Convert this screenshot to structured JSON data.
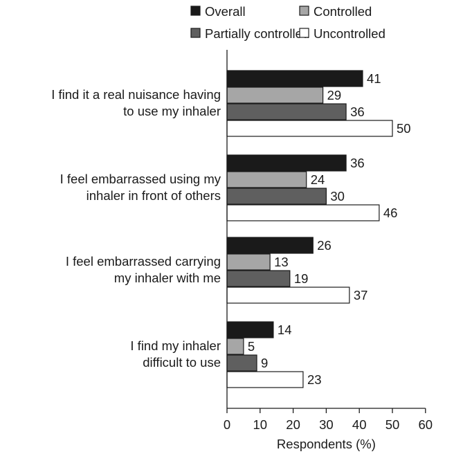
{
  "chart_data": {
    "type": "bar",
    "orientation": "horizontal",
    "categories": [
      [
        "I find it a real nuisance having",
        "to use my inhaler"
      ],
      [
        "I feel embarrassed using my",
        "inhaler in front of others"
      ],
      [
        "I feel embarrassed carrying",
        "my inhaler with me"
      ],
      [
        "I find my inhaler",
        "difficult to use"
      ]
    ],
    "series": [
      {
        "name": "Overall",
        "color": "#1a1a1a",
        "values": [
          41,
          36,
          26,
          14
        ]
      },
      {
        "name": "Controlled",
        "color": "#a6a6a6",
        "values": [
          29,
          24,
          13,
          5
        ]
      },
      {
        "name": "Partially controlled",
        "color": "#5f5f5f",
        "values": [
          36,
          30,
          19,
          9
        ]
      },
      {
        "name": "Uncontrolled",
        "color": "#ffffff",
        "values": [
          50,
          46,
          37,
          23
        ]
      }
    ],
    "xlabel": "Respondents (%)",
    "xlim": [
      0,
      60
    ],
    "xticks": [
      0,
      10,
      20,
      30,
      40,
      50,
      60
    ],
    "legend_position": "top",
    "grid": false
  }
}
